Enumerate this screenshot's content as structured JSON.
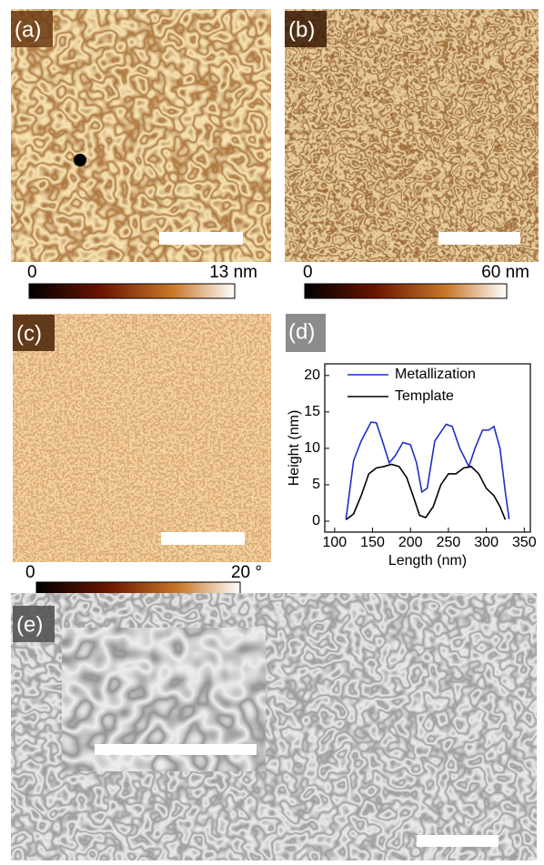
{
  "panels": {
    "a": "(a)",
    "b": "(b)",
    "c": "(c)",
    "d": "(d)",
    "e": "(e)"
  },
  "colorbars": [
    {
      "min": "0",
      "max": "13 nm"
    },
    {
      "min": "0",
      "max": "60 nm"
    },
    {
      "min": "0",
      "max": "20 °"
    }
  ],
  "chart_data": {
    "type": "line",
    "x_label": "Length (nm)",
    "y_label": "Height (nm)",
    "xlim": [
      87,
      358
    ],
    "ylim": [
      -1.5,
      21.6
    ],
    "xticks": [
      100,
      150,
      200,
      250,
      300,
      350
    ],
    "yticks": [
      0,
      5,
      10,
      15,
      20
    ],
    "legend": "upper-right",
    "series": [
      {
        "name": "Metallization",
        "color": "#1f2fc4",
        "x": [
          115,
          125,
          135,
          148,
          155,
          163,
          172,
          180,
          190,
          200,
          208,
          215,
          222,
          232,
          247,
          255,
          265,
          277,
          285,
          295,
          303,
          310,
          318,
          325,
          330
        ],
        "values": [
          0.3,
          8.3,
          11,
          13.6,
          13.5,
          11,
          8,
          9,
          10.8,
          10.5,
          8,
          4,
          4.5,
          11,
          13.3,
          13,
          10,
          7.5,
          10,
          12.5,
          12.5,
          13,
          10,
          4,
          0.3
        ]
      },
      {
        "name": "Template",
        "color": "#000000",
        "x": [
          115,
          125,
          135,
          145,
          155,
          165,
          175,
          185,
          195,
          205,
          212,
          220,
          230,
          240,
          250,
          260,
          270,
          280,
          290,
          300,
          310,
          318,
          325
        ],
        "values": [
          0.2,
          1,
          3.5,
          6.5,
          7.3,
          7.5,
          7.8,
          7.5,
          6,
          3,
          0.8,
          0.5,
          2,
          5,
          6.5,
          6.5,
          7.3,
          7.5,
          6.5,
          4.5,
          3.5,
          2,
          0.2
        ]
      }
    ]
  }
}
